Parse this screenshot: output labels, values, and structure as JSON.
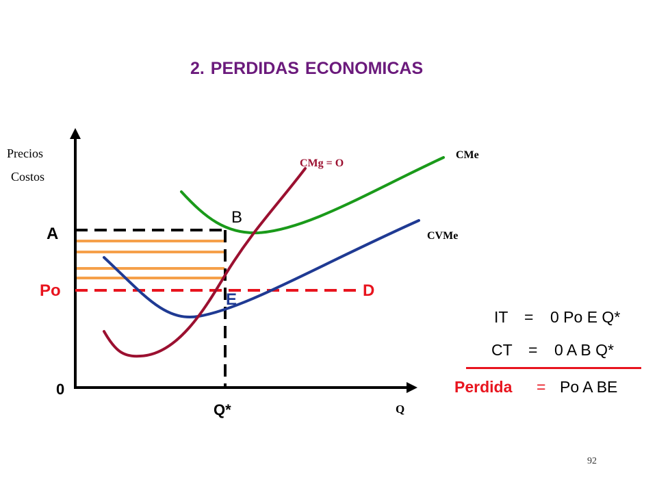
{
  "title": "2.   PERDIDAS     ECONOMICAS",
  "axes": {
    "y_label_1": "Precios",
    "y_label_2": "Costos",
    "x_label": "Q",
    "origin": "0"
  },
  "curves": {
    "cmg_label": "CMg = O",
    "cme_label": "CMe",
    "cvme_label": "CVMe"
  },
  "points": {
    "a": "A",
    "po": "Po",
    "b": "B",
    "e": "E",
    "d": "D",
    "qstar": "Q*"
  },
  "equations": {
    "it_lhs": "IT",
    "it_eq": "=",
    "it_rhs": "0 Po E Q*",
    "ct_lhs": "CT",
    "ct_eq": "=",
    "ct_rhs": "0 A B Q*",
    "loss_lhs": "Perdida",
    "loss_eq": "=",
    "loss_rhs": "Po A BE"
  },
  "page_number": "92",
  "colors": {
    "title": "#6b1a7c",
    "cmg": "#9b1030",
    "cme": "#1a9a1a",
    "cvme": "#1f3a93",
    "price_line": "#e8141e",
    "loss_stripes": "#f5a04a",
    "loss_label": "#e8141e",
    "point_e": "#1f3a93"
  }
}
